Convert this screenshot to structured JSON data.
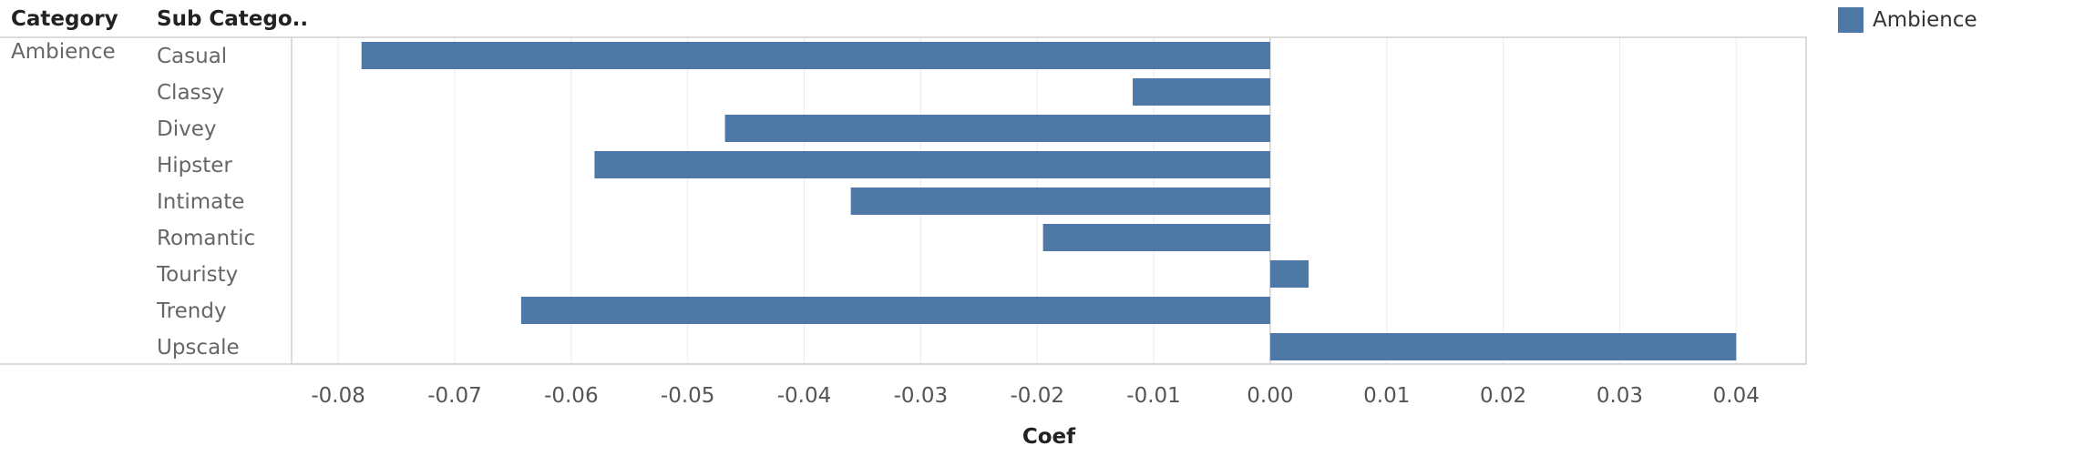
{
  "header": {
    "category": "Category",
    "sub_category": "Sub Catego.."
  },
  "category_value": "Ambience",
  "legend": {
    "label": "Ambience",
    "color": "#4e79a7"
  },
  "chart_data": {
    "type": "bar",
    "orientation": "horizontal",
    "categories": [
      "Casual",
      "Classy",
      "Divey",
      "Hipster",
      "Intimate",
      "Romantic",
      "Touristy",
      "Trendy",
      "Upscale"
    ],
    "series": [
      {
        "name": "Ambience",
        "values": [
          -0.078,
          -0.0118,
          -0.0468,
          -0.058,
          -0.036,
          -0.0195,
          0.0033,
          -0.0643,
          0.04
        ]
      }
    ],
    "xlabel": "Coef",
    "xlim": [
      -0.084,
      0.046
    ],
    "xticks": [
      "-0.08",
      "-0.07",
      "-0.06",
      "-0.05",
      "-0.04",
      "-0.03",
      "-0.02",
      "-0.01",
      "0.00",
      "0.01",
      "0.02",
      "0.03",
      "0.04"
    ],
    "grid": true,
    "bar_color": "#4e79a7"
  }
}
